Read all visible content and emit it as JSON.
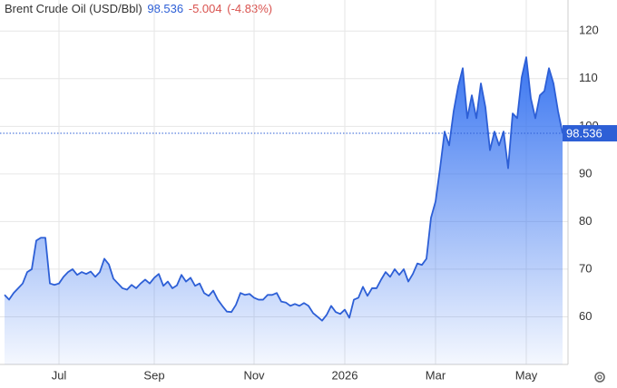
{
  "chart_data": {
    "type": "area",
    "title": "Brent Crude Oil (USD/Bbl)",
    "last_price": 98.536,
    "change": "-5.004",
    "change_pct": "(-4.83%)",
    "color": "#2d5fd6",
    "grid": true,
    "ylim": [
      50,
      125
    ],
    "yticks": [
      60,
      70,
      80,
      90,
      100,
      110,
      120
    ],
    "categories": [
      null,
      null,
      null,
      null,
      null,
      null,
      null,
      null,
      null,
      null,
      null,
      null,
      "Jul",
      null,
      null,
      null,
      null,
      null,
      null,
      null,
      null,
      null,
      null,
      null,
      null,
      null,
      null,
      null,
      null,
      null,
      null,
      null,
      null,
      "Sep",
      null,
      null,
      null,
      null,
      null,
      null,
      null,
      null,
      null,
      null,
      null,
      null,
      null,
      null,
      null,
      null,
      null,
      null,
      null,
      null,
      null,
      "Nov",
      null,
      null,
      null,
      null,
      null,
      null,
      null,
      null,
      null,
      null,
      null,
      null,
      null,
      null,
      null,
      null,
      null,
      null,
      null,
      "2026",
      null,
      null,
      null,
      null,
      null,
      null,
      null,
      null,
      null,
      null,
      null,
      null,
      null,
      null,
      null,
      null,
      null,
      null,
      null,
      "Mar",
      null,
      null,
      null,
      null,
      null,
      null,
      null,
      null,
      null,
      null,
      null,
      null,
      null,
      null,
      null,
      null,
      null,
      null,
      null,
      "May",
      null,
      null,
      null,
      null,
      null,
      null,
      null,
      null
    ],
    "values": [
      64.6,
      63.6,
      65,
      66,
      67,
      69.4,
      70,
      76,
      76.6,
      76.6,
      67,
      66.7,
      67,
      68.4,
      69.4,
      70,
      68.8,
      69.4,
      69,
      69.5,
      68.4,
      69.4,
      72.2,
      71,
      68,
      67,
      66,
      65.7,
      66.7,
      66,
      67,
      67.8,
      67,
      68.2,
      69,
      66.5,
      67.4,
      66,
      66.6,
      68.8,
      67.4,
      68.2,
      66.5,
      67,
      65,
      64.4,
      65.5,
      63.6,
      62.3,
      61.1,
      61,
      62.5,
      65,
      64.6,
      64.8,
      64,
      63.6,
      63.6,
      64.6,
      64.6,
      65,
      63.2,
      63,
      62.3,
      62.7,
      62.3,
      62.9,
      62.3,
      60.8,
      60,
      59.2,
      60.4,
      62.3,
      61,
      60.6,
      61.5,
      59.8,
      63.6,
      64,
      66.3,
      64.4,
      66,
      66,
      67.8,
      69.4,
      68.4,
      70,
      68.8,
      70,
      67.4,
      69,
      71.2,
      70.9,
      72.2,
      80.8,
      84.2,
      91.2,
      98.9,
      96,
      103.2,
      108.4,
      112.2,
      101.7,
      106.5,
      101.7,
      109,
      104,
      95,
      98.9,
      96,
      98.9,
      91.2,
      102.7,
      101.7,
      110.3,
      114.5,
      105.9,
      101.7,
      106.5,
      107.4,
      112.2,
      109,
      103.2,
      98.536
    ]
  }
}
